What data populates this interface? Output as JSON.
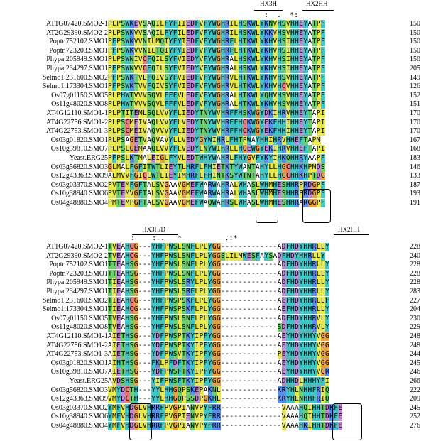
{
  "block1": {
    "motif_labels": [
      "HX3H",
      "HX2HH"
    ],
    "consensus_marks": ":  .  *:",
    "rows": [
      {
        "name": "AT1G07420.SMO2-1",
        "seq": "PLPSWKEVSAQILFYFIIEDFVFYWGHRILHSKWLYKNVHSVHHEYATPF",
        "end": "150"
      },
      {
        "name": "AT2G29390.SMO2-2",
        "seq": "PLPSWKVVSAQILFYFILEDFVFYWGHRILHSKWLYKKVHSVHHEYATPF",
        "end": "150"
      },
      {
        "name": "Poptr.752102.SMO1",
        "seq": "PFPSWKVVNILMQIYFYIEDFVFYWGHRFLHTKWLYKHVHSIHHEYATPF",
        "end": "150"
      },
      {
        "name": "Poptr.723203.SMO1",
        "seq": "PFPSWKVVNILTQIYFYIEDFVFYWGHRFLHTKWLYKHVHSIHHEYATPF",
        "end": "150"
      },
      {
        "name": "Phypa.205949.SMO1",
        "seq": "PLPSWNIVCFQILSYFVIEDYVFYWGHRALHSKWLYKHVHSIHHEYATPF",
        "end": "150"
      },
      {
        "name": "Phypa.234297.SMO1",
        "seq": "PFPSWNVVCFQILSYFVIEDYVFYWGHRALHSKWLYKHVHSIHHEYATPF",
        "end": "205"
      },
      {
        "name": "Selmo1.231600.SMO2",
        "seq": "PFPSWKTVLFQIVSYFVIEDFVFYWGHRVLHTKWLYKHVHSVHHEYATPF",
        "end": "149"
      },
      {
        "name": "Selmo1.173304.SMO1",
        "seq": "PFPSWKTVVFQIVSYFVIEDFVFYWGHRVLHTKWLYKHVHCVHHEYATPF",
        "end": "126"
      },
      {
        "name": "Os07g01150.SMO5",
        "seq": "PLPHWTVVVSQVLFFFVLEDFVFYWGHRALHTKWLYQHVHSVHHEYATPF",
        "end": "152"
      },
      {
        "name": "Os11g48020.SMO8",
        "seq": "PLPHWTVVVSQVLFFFVLEDFVFYWGHRALHTKWLYKHVHSVHHEYATPF",
        "end": "151"
      },
      {
        "name": "AT4G12110.SMO1-1",
        "seq": "PLPTITEMLSQLVVYFLIEDYTNYWVHRFFHSKWGYDKIHRVHHEYTAPI",
        "end": "170"
      },
      {
        "name": "AT4G22756.SMO1-2",
        "seq": "PLPSCMEIVAQLVVYFLVEDYTNYWVHRFFHCKWGYEKFHHIHHEYTAPI",
        "end": "170"
      },
      {
        "name": "AT4G22753.SMO1-3",
        "seq": "PLPSCMEIVAQVVVYFLIEDYTNYWVHRFFHCKWGYEKFHHIHHEYTAPI",
        "end": "170"
      },
      {
        "name": "Os03g01820.SMO1",
        "seq": "PLPSAGETVAQVAVYLLVEDYGYWIHRLFHTPWAYHHIHRVHHEFTAPM",
        "end": "167"
      },
      {
        "name": "Os10g39810.SMO7",
        "seq": "PLPSLGEMAAQLVVYFLVEDYLNYWIHRLLHGEWGYEKIHRVHHEFTAPI",
        "end": "168"
      },
      {
        "name": "Yeast.ERG25",
        "seq": "PFPSLKTMALEIGLFYVLEDTWHYWAHRLFHYGVFYKYIHKQHHRYAAPF",
        "end": "183"
      },
      {
        "name": "Os03g56820.SMO3",
        "seq": "GLMALFGFITWTLIEYTLHRFLFHIETKTYWANTAHYLLHGCHHKHPMDS",
        "end": "146"
      },
      {
        "name": "Os12g43363.SMO9",
        "seq": "ALMVVFGICLWTLIEYIMHRFLFHINTKSYWTNTAHYLLHGCHHKHPTDG",
        "end": "133"
      },
      {
        "name": "Os03g03370.SMO2",
        "seq": "PVTEMFGFTALSVGAAVGMEFWARWAHRALWHASLWHMHESHHRPRDGPF",
        "end": "187"
      },
      {
        "name": "Os10g38940.SMO6",
        "seq": "PVTEMVGFTALSVGAAVGMEFWARWAHRALWHASLWHMHESHHRPRDGPF",
        "end": "193"
      },
      {
        "name": "Os04g48880.SMO4",
        "seq": "PMTEMPGFTALSVGAAVGMEFWAQWAHRSLWHASLWHMHESHHRARGGPF",
        "end": "191"
      }
    ]
  },
  "block2": {
    "motif_labels": [
      "HX3H/D",
      "HX2HH"
    ],
    "consensus_marks": ":    : .   *          .:*",
    "rows": [
      {
        "name": "AT1G07420.SMO2-1",
        "seq": "TVEAHCG---YHFPWSLSNFLPLYGG-------------ADFHDYHHRLLY",
        "end": "228"
      },
      {
        "name": "AT2G29390.SMO2-2",
        "seq": "TVEAHCG---YHFPWSLSNFLPLYGGSLILMWESFAYSADFHDYHHRLLY",
        "end": "240"
      },
      {
        "name": "Poptr.752102.SMO1",
        "seq": "TTEAHSG---YHFPWSLSNFLPLYGG-------------ADFHDYHHRLLY",
        "end": "228"
      },
      {
        "name": "Poptr.723203.SMO1",
        "seq": "TTEAHSG---YHFPWSLSNFLPLYGG-------------ADFHDYHHRLLY",
        "end": "228"
      },
      {
        "name": "Phypa.205949.SMO1",
        "seq": "TIEAHSG---YHFPWSLSRYLPLYGG-------------ADFHDYHHRLLY",
        "end": "228"
      },
      {
        "name": "Phypa.234297.SMO1",
        "seq": "TIEAHSG---YHFPWSLSRFLPLYGG-------------ADFHDYHHRLLY",
        "end": "283"
      },
      {
        "name": "Selmo1.231600.SMO2",
        "seq": "TIEAHCG---YHFPWSPSKFLPLYGG-------------AEFHDYHHRLLF",
        "end": "227"
      },
      {
        "name": "Selmo1.173304.SMO1",
        "seq": "TIEAHCG---YHFPWSPSKFLPLYGG-------------AEFHDYHHRLLY",
        "end": "204"
      },
      {
        "name": "Os07g01150.SMO5",
        "seq": "TVEAHSG---YHFPWSLSNFLPLYGG-------------ADFHDYHHRVLY",
        "end": "230"
      },
      {
        "name": "Os11g48020.SMO8",
        "seq": "TVEAHSG---YHFPWSLSNFLPLYGG-------------SDFHDYHHRVLY",
        "end": "229"
      },
      {
        "name": "AT4G12110.SMO1-1",
        "seq": "AIETHSG---YDFPWSPTKYIPFYGG-------------AEYHDYHHYVGG",
        "end": "248"
      },
      {
        "name": "AT4G22756.SMO1-2",
        "seq": "AIETHSG---YDFPWSPTKYIPFYGG-------------AEYHDYHHYVGG",
        "end": "248"
      },
      {
        "name": "AT4G22753.SMO1-3",
        "seq": "AIETHSG---YDFPWSVTKYIPFYGG-------------PEYHDYHHYVGG",
        "end": "244"
      },
      {
        "name": "Os03g01820.SMO1",
        "seq": "AIHTHSG---FKLPFDFTKYIPFYGG-------------AEYHDYHHYVGG",
        "end": "245"
      },
      {
        "name": "Os10g39810.SMO7",
        "seq": "AIETHSG---YDFPWSFTKYIPFYGG-------------AEYHDYHHYVGR",
        "end": "246"
      },
      {
        "name": "Yeast.ERG25",
        "seq": "AVDSHSG---YIFPWSFTKYIPFYGG-------------ADHHDLHHHYFI",
        "end": "266"
      },
      {
        "name": "Os03g56820.SMO3",
        "seq": "VMYDCTH---YYLHHGQPSKEPAKNL-------------KRYHLNHHFRIQ",
        "end": "222"
      },
      {
        "name": "Os12g43363.SMO9",
        "seq": "VMYDCTH---YYLHHGQPSSDPGKHL-------------KRYHLNHHFRIQ",
        "end": "209"
      },
      {
        "name": "Os03g03370.SMO2",
        "seq": "YMFVHDGLVHRRFPVGPIANVPYFRR--------------VAAAHQIHHTDKFE",
        "end": "245"
      },
      {
        "name": "Os10g38940.SMO6",
        "seq": "YMFVHDGLVHRRFPVGPIENVPYFRR--------------VAAAHQIHHTDKFE",
        "end": "252"
      },
      {
        "name": "Os04g48880.SMO4",
        "seq": "YMFVHDGLVHRRFPVGPIANVPYFRR--------------VAAAHKIHHTDKFE",
        "end": "276"
      }
    ]
  }
}
